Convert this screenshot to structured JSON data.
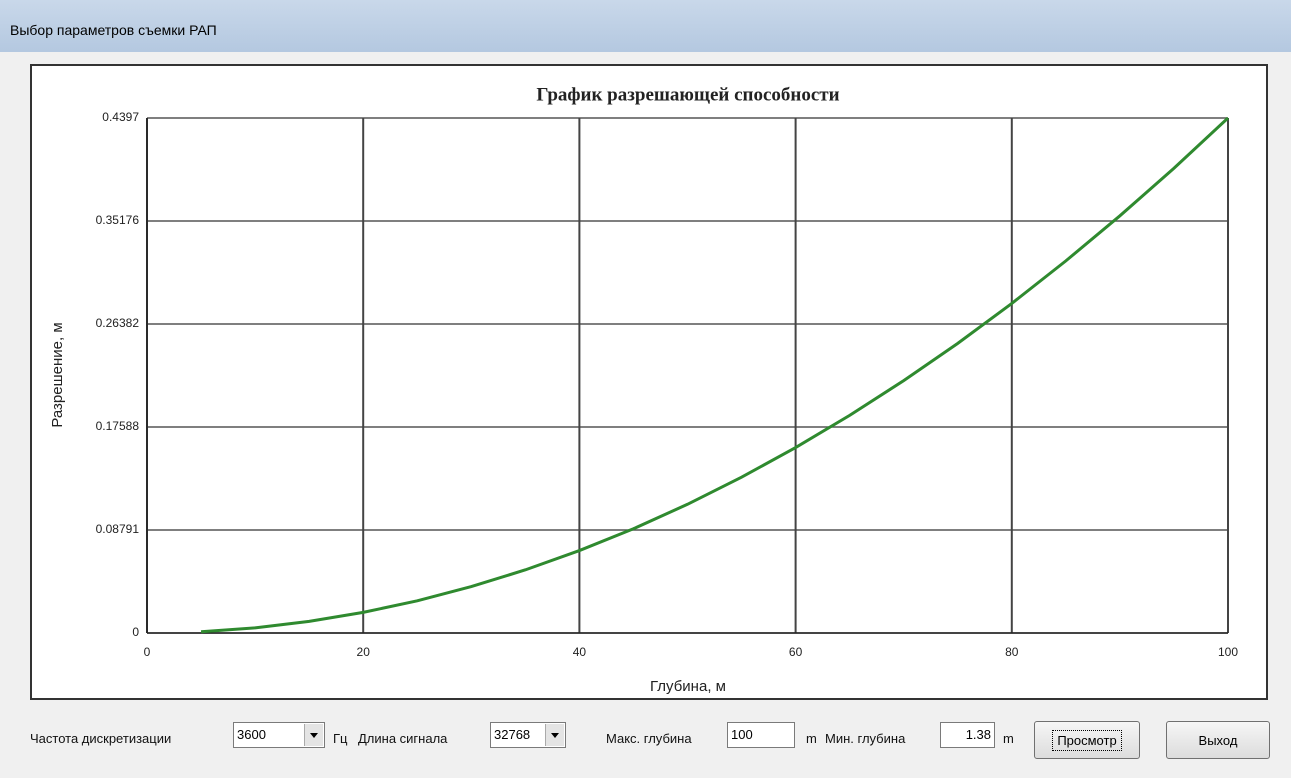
{
  "window": {
    "title": "Выбор параметров съемки РАП"
  },
  "chart_data": {
    "type": "line",
    "title": "График разрешающей способности",
    "x_label": "Глубина, м",
    "y_label": "Разрешение, м",
    "x": [
      5,
      10,
      15,
      20,
      25,
      30,
      35,
      40,
      45,
      50,
      55,
      60,
      65,
      70,
      75,
      80,
      85,
      90,
      95,
      100
    ],
    "values": [
      0.0011,
      0.0044,
      0.0099,
      0.0176,
      0.0275,
      0.0396,
      0.0539,
      0.0704,
      0.089,
      0.1099,
      0.133,
      0.1583,
      0.1858,
      0.2155,
      0.2473,
      0.2814,
      0.3177,
      0.3562,
      0.3968,
      0.4397
    ],
    "color": "#2f8a2f",
    "xlim": [
      0,
      100
    ],
    "xticks": [
      0,
      20,
      40,
      60,
      80,
      100
    ],
    "ylim": [
      0,
      0.4397
    ],
    "yticks": [
      0,
      0.08791,
      0.17588,
      0.26382,
      0.35176,
      0.4397
    ],
    "grid": true
  },
  "controls": {
    "sample_rate_label": "Частота дискретизации",
    "sample_rate": "3600",
    "sample_rate_unit": "Гц",
    "signal_length_label": "Длина сигнала",
    "signal_length": "32768",
    "max_depth_label": "Макс. глубина",
    "max_depth": "100",
    "max_depth_unit": "m",
    "min_depth_label": "Мин. глубина",
    "min_depth": "1.38",
    "min_depth_unit": "m",
    "preview_button": "Просмотр",
    "exit_button": "Выход"
  }
}
